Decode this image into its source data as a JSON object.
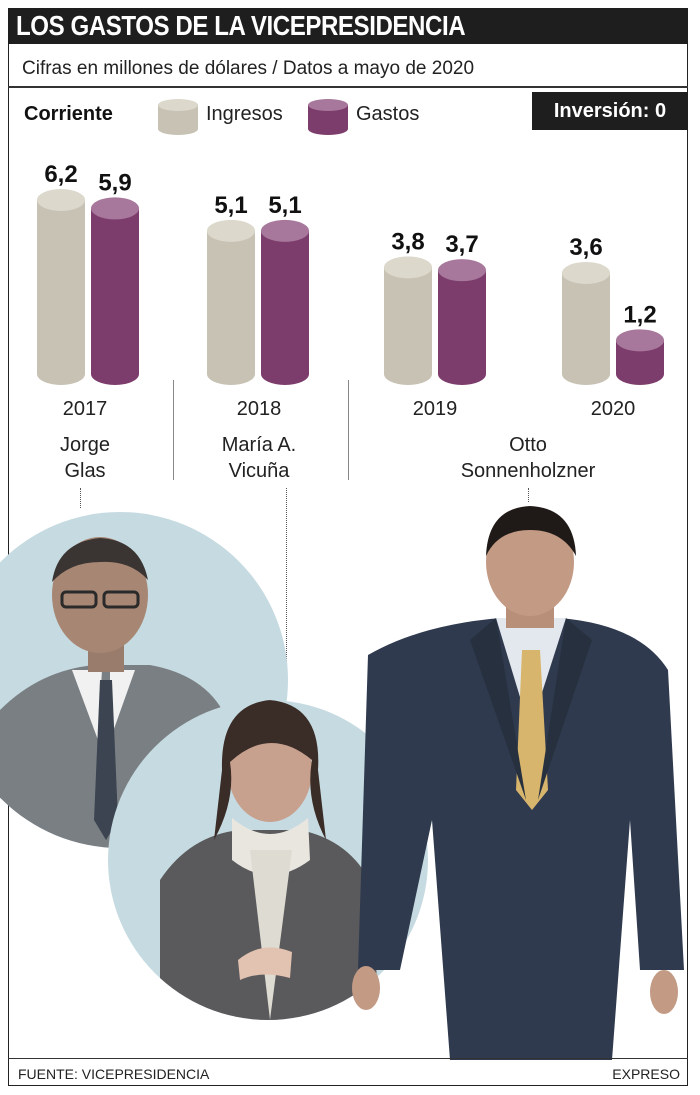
{
  "title": "LOS GASTOS DE LA VICEPRESIDENCIA",
  "subtitle": "Cifras en millones de dólares / Datos a mayo de 2020",
  "legend": {
    "corriente": "Corriente",
    "ingresos": "Ingresos",
    "gastos": "Gastos",
    "inversion": "Inversión: 0"
  },
  "colors": {
    "ingresos": "#c7c2b4",
    "ingresos_top": "#dcd8cc",
    "gastos": "#7d3d6c",
    "gastos_top": "#a7789b",
    "photo_circle": "#c6dbe1",
    "dark_bar": "#1e1e1e"
  },
  "chart_data": {
    "type": "bar",
    "categories": [
      "2017",
      "2018",
      "2019",
      "2020"
    ],
    "series": [
      {
        "name": "Ingresos",
        "values": [
          6.2,
          5.1,
          3.8,
          3.6
        ],
        "labels": [
          "6,2",
          "5,1",
          "3,8",
          "3,6"
        ]
      },
      {
        "name": "Gastos",
        "values": [
          5.9,
          5.1,
          3.7,
          1.2
        ],
        "labels": [
          "5,9",
          "5,1",
          "3,7",
          "1,2"
        ]
      }
    ],
    "ylim": [
      0,
      6.2
    ]
  },
  "years": [
    "2017",
    "2018",
    "2019",
    "2020"
  ],
  "names": [
    {
      "line1": "Jorge",
      "line2": "Glas"
    },
    {
      "line1": "María A.",
      "line2": "Vicuña"
    },
    {
      "line1": "Otto",
      "line2": "Sonnenholzner"
    }
  ],
  "photos": [
    "Jorge Glas",
    "María A. Vicuña",
    "Otto Sonnenholzner"
  ],
  "footer": {
    "source": "FUENTE: VICEPRESIDENCIA",
    "brand": "EXPRESO"
  }
}
